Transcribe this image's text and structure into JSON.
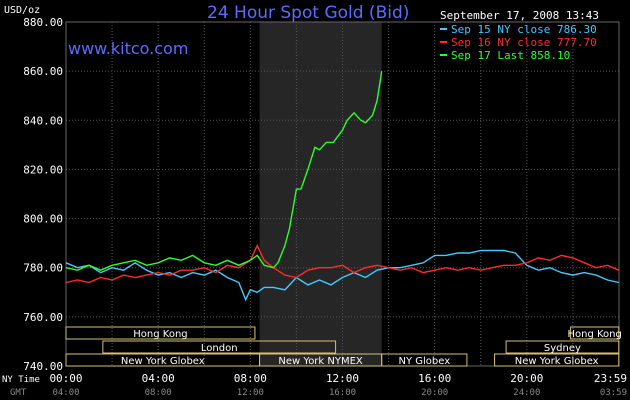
{
  "chart_data": {
    "type": "line",
    "title": "24 Hour Spot Gold (Bid)",
    "source": "www.kitco.com",
    "timestamp": "September 17, 2008 13:43",
    "ylabel": "USD/oz",
    "ylim": [
      740,
      880
    ],
    "yticks": [
      "740.00",
      "760.00",
      "780.00",
      "800.00",
      "820.00",
      "840.00",
      "860.00",
      "880.00"
    ],
    "xlim": [
      0,
      24
    ],
    "xticks": [
      "00:00",
      "04:00",
      "08:00",
      "12:00",
      "16:00",
      "20:00",
      "23:59"
    ],
    "x_axis_label_ny": "NY Time",
    "x_axis_label_gmt": "GMT",
    "gmt_ticks": [
      "04:00",
      "08:00",
      "12:00",
      "16:00",
      "20:00",
      "24:00",
      "03:59"
    ],
    "grid": true,
    "legend_position": "top-right",
    "highlight_hours": [
      8.4,
      13.7
    ],
    "series": [
      {
        "name": "Sep 15 NY close 786.30",
        "color": "#44c8ff",
        "x": [
          0,
          0.5,
          1,
          1.5,
          2,
          2.5,
          3,
          3.5,
          4,
          4.5,
          5,
          5.5,
          6,
          6.5,
          7,
          7.5,
          7.8,
          8,
          8.3,
          8.6,
          9,
          9.5,
          10,
          10.5,
          11,
          11.5,
          12,
          12.5,
          13,
          13.5,
          14,
          14.5,
          15,
          15.5,
          16,
          16.5,
          17,
          17.5,
          18,
          18.5,
          19,
          19.5,
          20,
          20.5,
          21,
          21.5,
          22,
          22.5,
          23,
          23.5,
          23.99
        ],
        "values": [
          782,
          780,
          781,
          778,
          780,
          779,
          782,
          779,
          777,
          778,
          776,
          778,
          777,
          779,
          776,
          774,
          767,
          771,
          770,
          772,
          772,
          771,
          776,
          773,
          775,
          773,
          776,
          778,
          776,
          779,
          780,
          780,
          781,
          782,
          785,
          785,
          786,
          786,
          787,
          787,
          787,
          786,
          781,
          779,
          780,
          778,
          777,
          778,
          777,
          775,
          774
        ]
      },
      {
        "name": "Sep 16 NY close 777.70",
        "color": "#ff2a2a",
        "x": [
          0,
          0.5,
          1,
          1.5,
          2,
          2.5,
          3,
          3.5,
          4,
          4.5,
          5,
          5.5,
          6,
          6.5,
          7,
          7.5,
          8,
          8.3,
          8.6,
          9,
          9.5,
          10,
          10.5,
          11,
          11.5,
          12,
          12.5,
          13,
          13.5,
          14,
          14.5,
          15,
          15.5,
          16,
          16.5,
          17,
          17.5,
          18,
          18.5,
          19,
          19.5,
          20,
          20.5,
          21,
          21.5,
          22,
          22.5,
          23,
          23.5,
          23.99
        ],
        "values": [
          774,
          775,
          774,
          776,
          775,
          777,
          776,
          777,
          778,
          777,
          779,
          779,
          780,
          778,
          781,
          780,
          783,
          789,
          783,
          780,
          777,
          776,
          779,
          780,
          780,
          781,
          778,
          780,
          781,
          780,
          779,
          780,
          778,
          779,
          780,
          779,
          780,
          779,
          780,
          781,
          781,
          782,
          784,
          783,
          785,
          784,
          782,
          780,
          781,
          779
        ]
      },
      {
        "name": "Sep 17 Last 858.10",
        "color": "#2bff2b",
        "x": [
          0,
          0.5,
          1,
          1.5,
          2,
          2.5,
          3,
          3.5,
          4,
          4.5,
          5,
          5.5,
          6,
          6.5,
          7,
          7.5,
          8,
          8.3,
          8.6,
          9,
          9.2,
          9.5,
          9.7,
          10,
          10.2,
          10.5,
          10.8,
          11,
          11.3,
          11.6,
          12,
          12.2,
          12.5,
          12.8,
          13,
          13.3,
          13.5,
          13.7
        ],
        "values": [
          780,
          779,
          781,
          779,
          781,
          782,
          783,
          781,
          782,
          784,
          783,
          785,
          782,
          781,
          783,
          781,
          783,
          785,
          781,
          780,
          782,
          789,
          796,
          812,
          812,
          820,
          829,
          828,
          831,
          831,
          836,
          840,
          843,
          840,
          839,
          842,
          848,
          860
        ]
      }
    ],
    "sessions": [
      {
        "label": "Hong Kong",
        "row": 0,
        "start": 0,
        "end": 8.2
      },
      {
        "label": "Hong Kong",
        "row": 0,
        "start": 21.9,
        "end": 23.99
      },
      {
        "label": "London",
        "row": 1,
        "start": 1.6,
        "end": 11.7
      },
      {
        "label": "Sydney",
        "row": 1,
        "start": 19.1,
        "end": 23.99
      },
      {
        "label": "New York Globex",
        "row": 2,
        "start": 0,
        "end": 8.4
      },
      {
        "label": "New York NYMEX",
        "row": 2,
        "start": 8.4,
        "end": 13.7
      },
      {
        "label": "NY Globex",
        "row": 2,
        "start": 13.7,
        "end": 17.4
      },
      {
        "label": "New York Globex",
        "row": 2,
        "start": 18.6,
        "end": 23.99
      }
    ]
  }
}
